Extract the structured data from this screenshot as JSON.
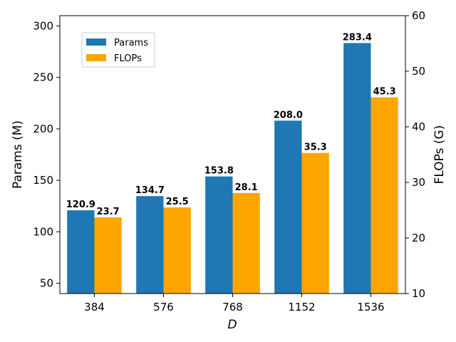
{
  "chart_data": {
    "type": "bar",
    "categories": [
      "384",
      "576",
      "768",
      "1152",
      "1536"
    ],
    "series": [
      {
        "name": "Params",
        "axis": "left",
        "color": "#1f77b4",
        "values": [
          120.9,
          134.7,
          153.8,
          208.0,
          283.4
        ],
        "labels": [
          "120.9",
          "134.7",
          "153.8",
          "208.0",
          "283.4"
        ]
      },
      {
        "name": "FLOPs",
        "axis": "right",
        "color": "#ffa500",
        "values": [
          23.7,
          25.5,
          28.1,
          35.3,
          45.3
        ],
        "labels": [
          "23.7",
          "25.5",
          "28.1",
          "35.3",
          "45.3"
        ]
      }
    ],
    "xlabel": "D",
    "ylabel": "Params (M)",
    "ylabel_right": "FLOPs (G)",
    "ylim": [
      40,
      310
    ],
    "ylim_right": [
      10,
      60
    ],
    "yticks": [
      50,
      100,
      150,
      200,
      250,
      300
    ],
    "yticks_right": [
      10,
      20,
      30,
      40,
      50,
      60
    ],
    "grid": false,
    "legend_position": "upper-left"
  }
}
